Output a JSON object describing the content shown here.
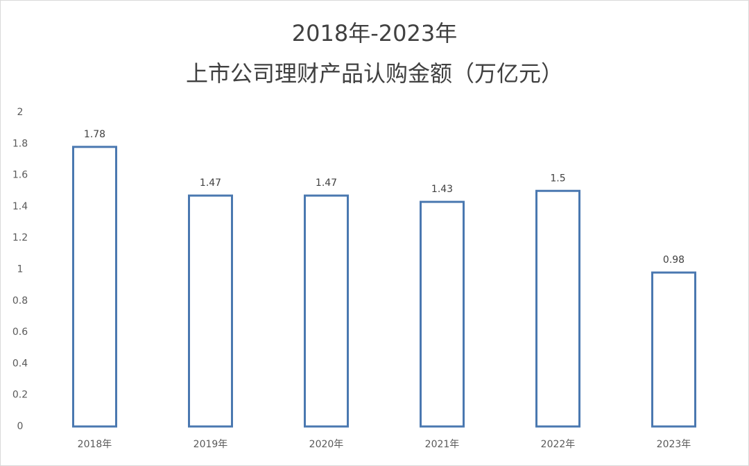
{
  "chart_data": {
    "type": "bar",
    "title": [
      "2018年-2023年",
      "上市公司理财产品认购金额（万亿元）"
    ],
    "categories": [
      "2018年",
      "2019年",
      "2020年",
      "2021年",
      "2022年",
      "2023年"
    ],
    "values": [
      1.78,
      1.47,
      1.47,
      1.43,
      1.5,
      0.98
    ],
    "color": "#4a78b0",
    "ylim": [
      0,
      2
    ],
    "yticks": [
      0,
      0.2,
      0.4,
      0.6,
      0.8,
      1,
      1.2,
      1.4,
      1.6,
      1.8,
      2
    ],
    "grid": false
  }
}
